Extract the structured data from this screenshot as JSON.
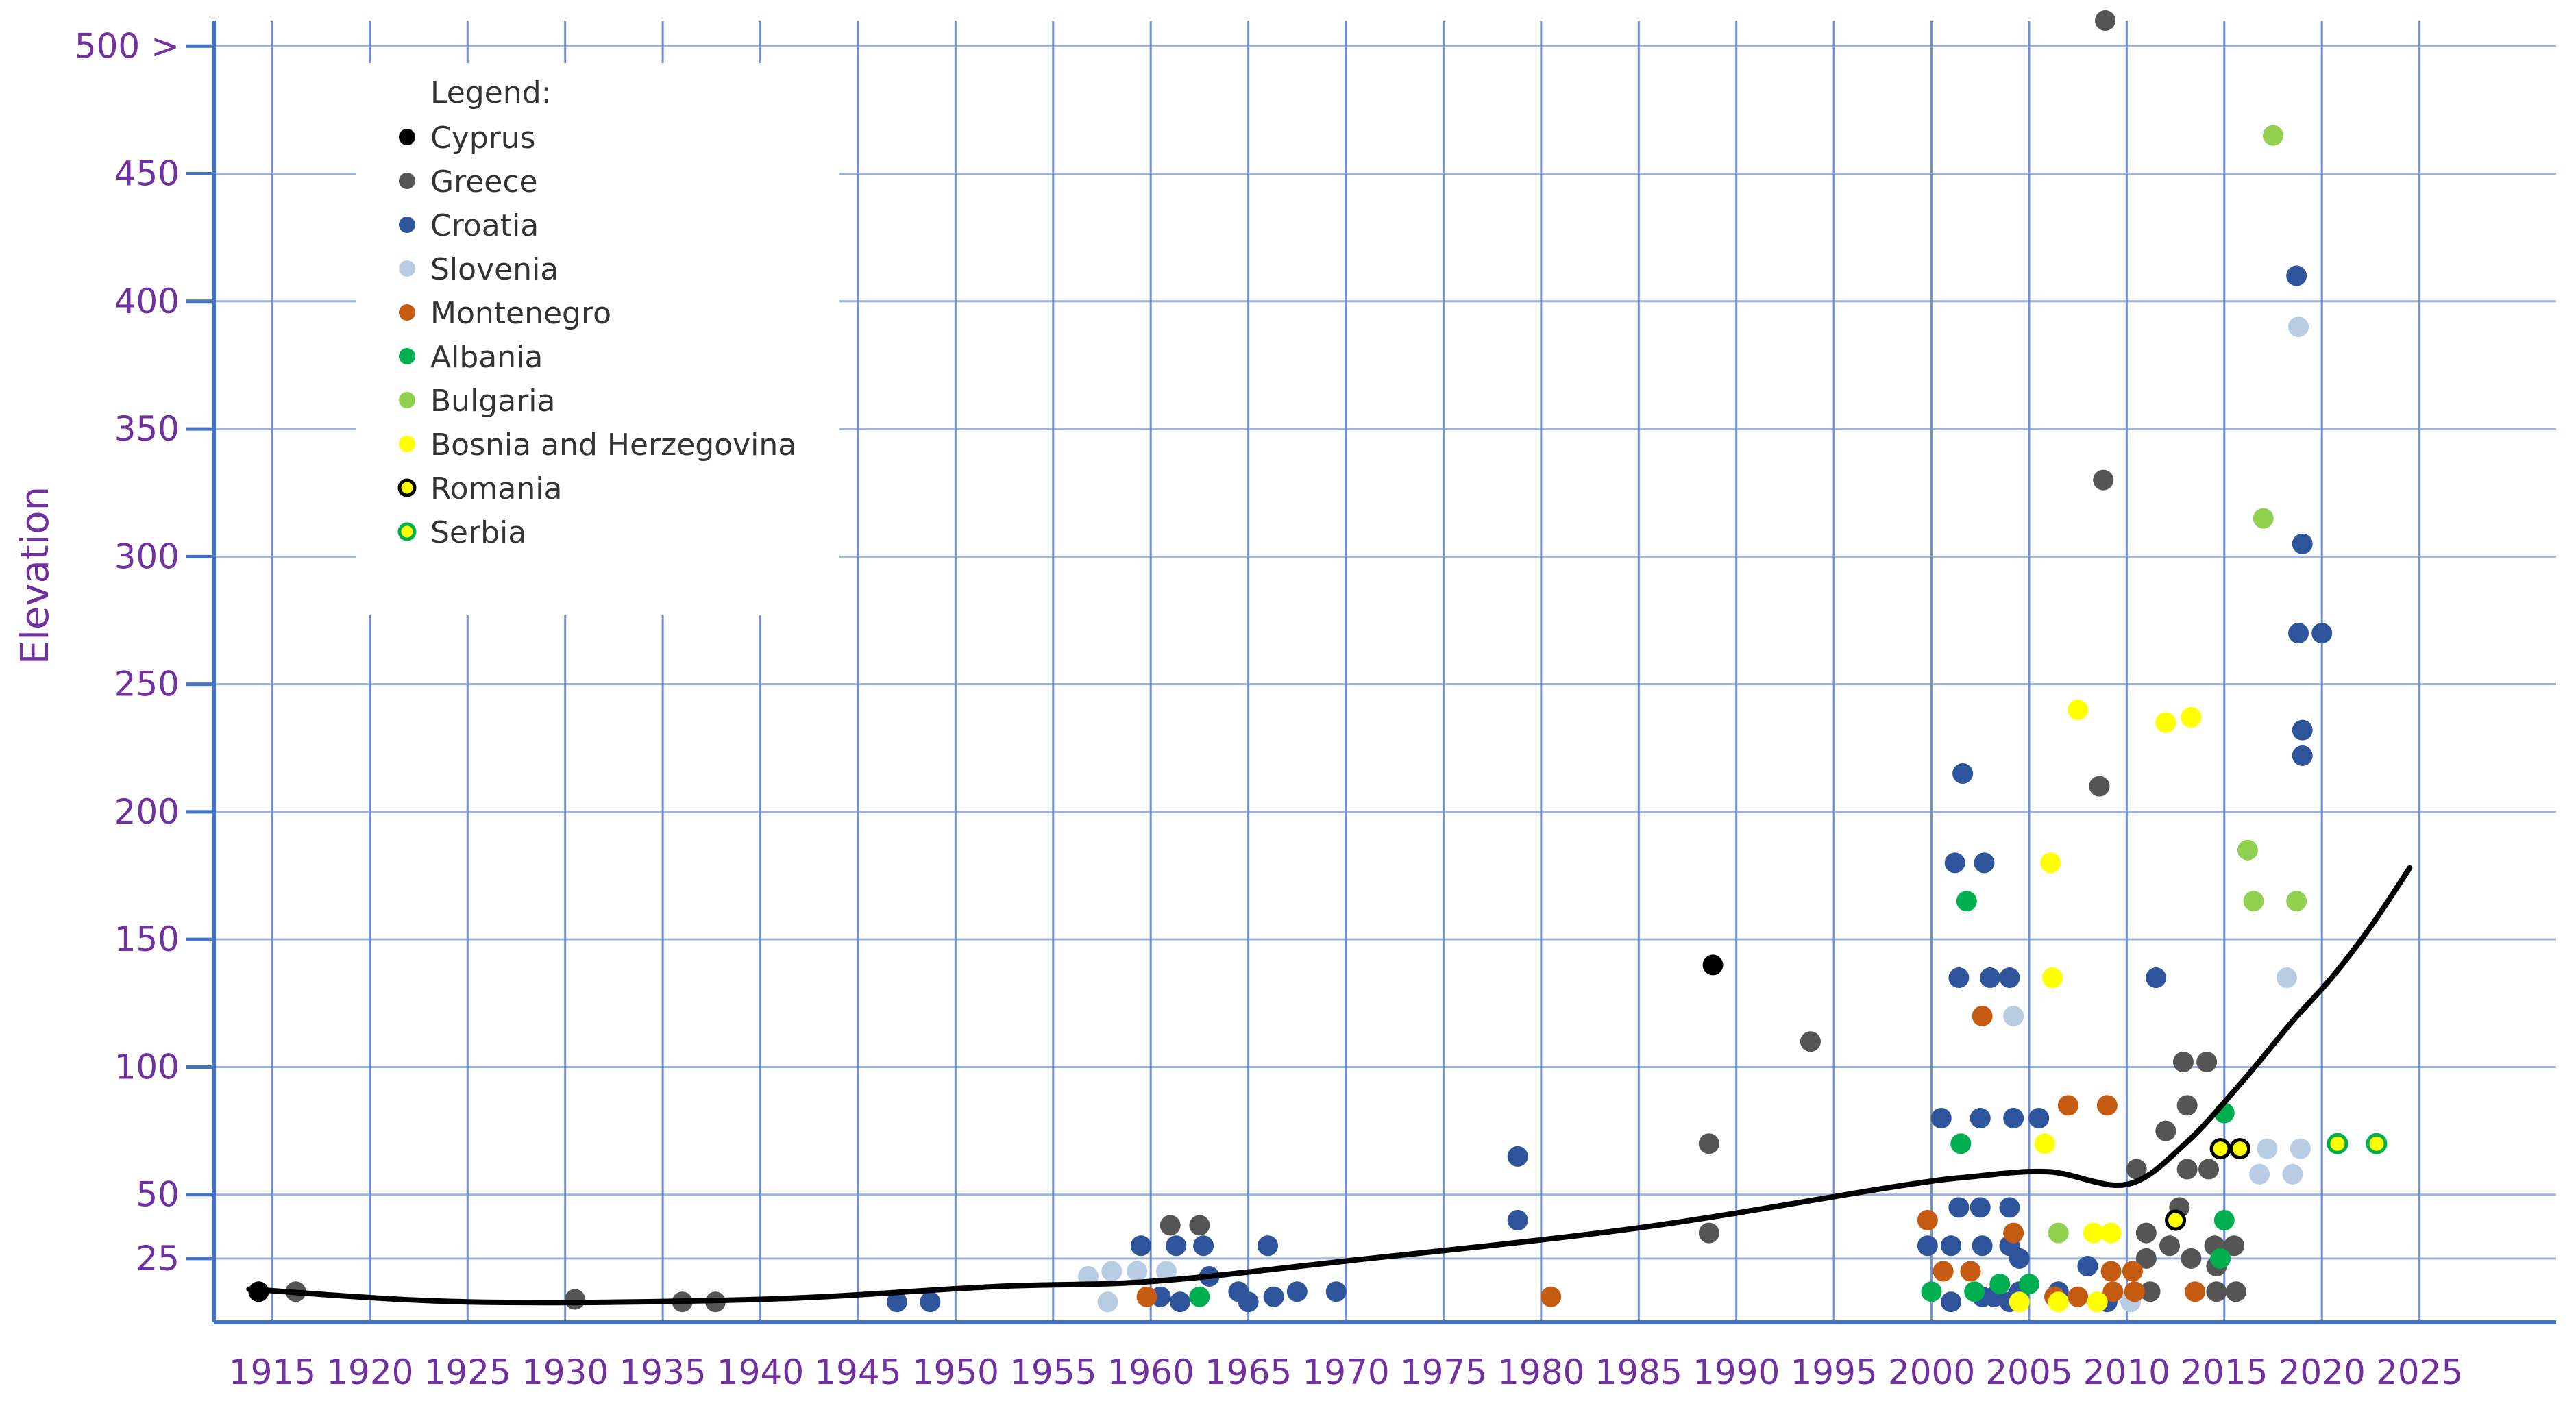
{
  "chart_data": {
    "type": "scatter",
    "title": "",
    "xlabel": "",
    "ylabel": "Elevation",
    "xlim": [
      1912,
      2032
    ],
    "ylim": [
      0,
      510
    ],
    "x_ticks": [
      1915,
      1920,
      1925,
      1930,
      1935,
      1940,
      1945,
      1950,
      1955,
      1960,
      1965,
      1970,
      1975,
      1980,
      1985,
      1990,
      1995,
      2000,
      2005,
      2010,
      2015,
      2020,
      2025
    ],
    "y_ticks": [
      {
        "value": 25,
        "label": "25"
      },
      {
        "value": 50,
        "label": "50"
      },
      {
        "value": 100,
        "label": "100"
      },
      {
        "value": 150,
        "label": "150"
      },
      {
        "value": 200,
        "label": "200"
      },
      {
        "value": 250,
        "label": "250"
      },
      {
        "value": 300,
        "label": "300"
      },
      {
        "value": 350,
        "label": "350"
      },
      {
        "value": 400,
        "label": "400"
      },
      {
        "value": 450,
        "label": "450"
      },
      {
        "value": 500,
        "label": "500 >"
      }
    ],
    "grid": true,
    "legend_title": "Legend:",
    "legend_position": "top-left",
    "series": [
      {
        "name": "Cyprus",
        "color": "#000000",
        "points": [
          [
            1914.3,
            12
          ],
          [
            1988.8,
            140
          ]
        ]
      },
      {
        "name": "Greece",
        "color": "#555555",
        "points": [
          [
            1916.2,
            12
          ],
          [
            1930.5,
            9
          ],
          [
            1936,
            8
          ],
          [
            1937.7,
            8
          ],
          [
            1961,
            38
          ],
          [
            1962.5,
            38
          ],
          [
            1988.6,
            70
          ],
          [
            1988.6,
            35
          ],
          [
            1993.8,
            110
          ],
          [
            2008.6,
            210
          ],
          [
            2008.8,
            330
          ],
          [
            2008.9,
            510
          ],
          [
            2010.5,
            60
          ],
          [
            2011,
            25
          ],
          [
            2011,
            35
          ],
          [
            2011.2,
            12
          ],
          [
            2012,
            75
          ],
          [
            2012.2,
            30
          ],
          [
            2012.7,
            45
          ],
          [
            2012.9,
            102
          ],
          [
            2013.1,
            85
          ],
          [
            2013.1,
            60
          ],
          [
            2013.3,
            25
          ],
          [
            2014.1,
            102
          ],
          [
            2014.2,
            60
          ],
          [
            2014.5,
            30
          ],
          [
            2014.6,
            22
          ],
          [
            2014.6,
            12
          ],
          [
            2015.5,
            30
          ],
          [
            2015.6,
            12
          ]
        ]
      },
      {
        "name": "Croatia",
        "color": "#2e549c",
        "points": [
          [
            1947,
            8
          ],
          [
            1948.7,
            8
          ],
          [
            1959.5,
            30
          ],
          [
            1960.5,
            10
          ],
          [
            1961.3,
            30
          ],
          [
            1961.5,
            8
          ],
          [
            1962.7,
            30
          ],
          [
            1963,
            18
          ],
          [
            1964.5,
            12
          ],
          [
            1965,
            8
          ],
          [
            1966,
            30
          ],
          [
            1966.3,
            10
          ],
          [
            1967.5,
            12
          ],
          [
            1969.5,
            12
          ],
          [
            1978.8,
            65
          ],
          [
            1978.8,
            40
          ],
          [
            1999.8,
            30
          ],
          [
            2000.5,
            80
          ],
          [
            2001,
            8
          ],
          [
            2001,
            30
          ],
          [
            2001.2,
            180
          ],
          [
            2001.4,
            45
          ],
          [
            2001.4,
            135
          ],
          [
            2001.6,
            215
          ],
          [
            2002.5,
            45
          ],
          [
            2002.5,
            80
          ],
          [
            2002.6,
            30
          ],
          [
            2002.6,
            10
          ],
          [
            2002.7,
            180
          ],
          [
            2003,
            135
          ],
          [
            2003.2,
            10
          ],
          [
            2004,
            8
          ],
          [
            2004,
            135
          ],
          [
            2004,
            30
          ],
          [
            2004,
            45
          ],
          [
            2004.2,
            80
          ],
          [
            2004.5,
            25
          ],
          [
            2004.5,
            12
          ],
          [
            2005.5,
            80
          ],
          [
            2006.5,
            12
          ],
          [
            2008,
            22
          ],
          [
            2009,
            8
          ],
          [
            2011.5,
            135
          ],
          [
            2018.7,
            410
          ],
          [
            2018.8,
            270
          ],
          [
            2019,
            305
          ],
          [
            2019,
            222
          ],
          [
            2019,
            232
          ],
          [
            2020,
            270
          ]
        ]
      },
      {
        "name": "Slovenia",
        "color": "#b8cce4",
        "points": [
          [
            1956.8,
            18
          ],
          [
            1957.8,
            8
          ],
          [
            1958,
            20
          ],
          [
            1959.3,
            20
          ],
          [
            1960.8,
            20
          ],
          [
            2004.2,
            120
          ],
          [
            2010.2,
            8
          ],
          [
            2016.8,
            58
          ],
          [
            2017.2,
            68
          ],
          [
            2018.2,
            135
          ],
          [
            2018.5,
            58
          ],
          [
            2018.8,
            390
          ],
          [
            2018.9,
            68
          ]
        ]
      },
      {
        "name": "Montenegro",
        "color": "#c55a11",
        "points": [
          [
            1959.8,
            10
          ],
          [
            1980.5,
            10
          ],
          [
            1999.8,
            40
          ],
          [
            2000.6,
            20
          ],
          [
            2002,
            20
          ],
          [
            2002.6,
            120
          ],
          [
            2004.2,
            35
          ],
          [
            2006.3,
            10
          ],
          [
            2007,
            85
          ],
          [
            2007.5,
            10
          ],
          [
            2009,
            85
          ],
          [
            2009.2,
            20
          ],
          [
            2009.3,
            12
          ],
          [
            2010.3,
            20
          ],
          [
            2010.4,
            12
          ],
          [
            2013.5,
            12
          ]
        ]
      },
      {
        "name": "Albania",
        "color": "#00b050",
        "points": [
          [
            1962.5,
            10
          ],
          [
            2000,
            12
          ],
          [
            2001.5,
            70
          ],
          [
            2001.8,
            165
          ],
          [
            2002.2,
            12
          ],
          [
            2003.5,
            15
          ],
          [
            2005,
            15
          ],
          [
            2014.8,
            25
          ],
          [
            2015,
            40
          ],
          [
            2015,
            82
          ]
        ]
      },
      {
        "name": "Bulgaria",
        "color": "#92d050",
        "points": [
          [
            2006.5,
            35
          ],
          [
            2016.2,
            185
          ],
          [
            2016.5,
            165
          ],
          [
            2017,
            315
          ],
          [
            2017.5,
            465
          ],
          [
            2018.7,
            165
          ]
        ]
      },
      {
        "name": "Bosnia and Herzegovina",
        "color": "#ffff00",
        "points": [
          [
            2004.5,
            8
          ],
          [
            2005.8,
            70
          ],
          [
            2006.1,
            180
          ],
          [
            2006.2,
            135
          ],
          [
            2006.5,
            8
          ],
          [
            2007.5,
            240
          ],
          [
            2008.3,
            35
          ],
          [
            2008.5,
            8
          ],
          [
            2009.2,
            35
          ],
          [
            2012,
            235
          ],
          [
            2013.3,
            237
          ]
        ]
      },
      {
        "name": "Romania",
        "color": "#ffff00",
        "stroke": "#000000",
        "points": [
          [
            2012.5,
            40
          ],
          [
            2014.8,
            68
          ],
          [
            2015.8,
            68
          ]
        ]
      },
      {
        "name": "Serbia",
        "color": "#ffff00",
        "stroke": "#00b050",
        "points": [
          [
            2020.8,
            70
          ],
          [
            2022.8,
            70
          ]
        ]
      }
    ],
    "trend_line": {
      "color": "#000000",
      "points": [
        [
          1913.8,
          13
        ],
        [
          1925,
          8
        ],
        [
          1940,
          9
        ],
        [
          1952,
          14
        ],
        [
          1960,
          16
        ],
        [
          1970,
          24
        ],
        [
          1985,
          37
        ],
        [
          1998,
          53
        ],
        [
          2002,
          57
        ],
        [
          2006,
          59
        ],
        [
          2010,
          54
        ],
        [
          2013,
          70
        ],
        [
          2016,
          95
        ],
        [
          2018.5,
          118
        ],
        [
          2020.5,
          135
        ],
        [
          2022.5,
          155
        ],
        [
          2024.5,
          178
        ]
      ]
    }
  }
}
